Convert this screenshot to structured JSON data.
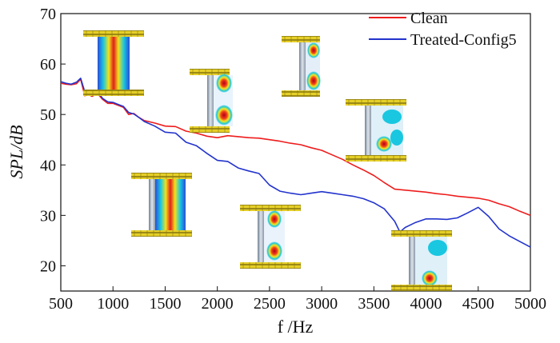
{
  "chart_data": {
    "type": "line",
    "title": "",
    "xlabel": "f /Hz",
    "ylabel": "SPL/dB",
    "xlim": [
      500,
      5000
    ],
    "ylim": [
      15,
      70
    ],
    "xticks": [
      500,
      1000,
      1500,
      2000,
      2500,
      3000,
      3500,
      4000,
      4500,
      5000
    ],
    "yticks": [
      20,
      30,
      40,
      50,
      60,
      70
    ],
    "legend_position": "top-right",
    "series": [
      {
        "name": "Clean",
        "color": "#ee1c1c",
        "x": [
          500,
          550,
          600,
          650,
          690,
          730,
          760,
          800,
          850,
          900,
          950,
          1000,
          1050,
          1100,
          1150,
          1200,
          1250,
          1300,
          1400,
          1500,
          1600,
          1700,
          1800,
          1900,
          2000,
          2100,
          2200,
          2300,
          2400,
          2500,
          2600,
          2700,
          2800,
          2900,
          3000,
          3100,
          3200,
          3300,
          3400,
          3500,
          3600,
          3700,
          3800,
          3900,
          4000,
          4100,
          4200,
          4300,
          4400,
          4500,
          4600,
          4700,
          4800,
          4900,
          5000
        ],
        "values": [
          56.2,
          56.0,
          55.9,
          56.1,
          57.0,
          53.7,
          54.0,
          53.6,
          54.2,
          53.0,
          52.2,
          52.2,
          51.8,
          51.4,
          50.0,
          50.2,
          49.4,
          48.8,
          48.3,
          47.7,
          47.6,
          46.7,
          46.3,
          45.7,
          45.4,
          45.8,
          45.6,
          45.4,
          45.3,
          45.0,
          44.7,
          44.3,
          44.0,
          43.4,
          42.9,
          42.0,
          41.1,
          40.0,
          39.0,
          37.9,
          36.5,
          35.2,
          35.0,
          34.8,
          34.6,
          34.3,
          34.1,
          33.8,
          33.6,
          33.4,
          33.0,
          32.3,
          31.7,
          30.8,
          30.0
        ]
      },
      {
        "name": "Treated-Config5",
        "color": "#2233cc",
        "x": [
          500,
          550,
          600,
          650,
          690,
          730,
          760,
          800,
          850,
          900,
          950,
          1000,
          1050,
          1100,
          1150,
          1200,
          1250,
          1300,
          1400,
          1500,
          1600,
          1700,
          1800,
          1900,
          2000,
          2100,
          2200,
          2300,
          2400,
          2500,
          2600,
          2700,
          2800,
          2900,
          3000,
          3100,
          3200,
          3300,
          3400,
          3500,
          3600,
          3700,
          3750,
          3800,
          3900,
          4000,
          4100,
          4200,
          4300,
          4400,
          4500,
          4600,
          4700,
          4800,
          4900,
          5000
        ],
        "values": [
          56.5,
          56.2,
          56.0,
          56.4,
          57.2,
          54.5,
          54.4,
          53.9,
          54.6,
          53.2,
          52.5,
          52.4,
          52.0,
          51.6,
          50.4,
          50.1,
          49.4,
          48.6,
          47.7,
          46.5,
          46.3,
          44.5,
          43.8,
          42.3,
          40.9,
          40.7,
          39.4,
          38.8,
          38.3,
          36.0,
          34.8,
          34.4,
          34.1,
          34.4,
          34.7,
          34.4,
          34.1,
          33.8,
          33.3,
          32.5,
          31.3,
          28.8,
          26.7,
          27.6,
          28.6,
          29.3,
          29.3,
          29.2,
          29.5,
          30.5,
          31.6,
          29.8,
          27.3,
          25.9,
          24.8,
          23.7
        ]
      }
    ]
  }
}
